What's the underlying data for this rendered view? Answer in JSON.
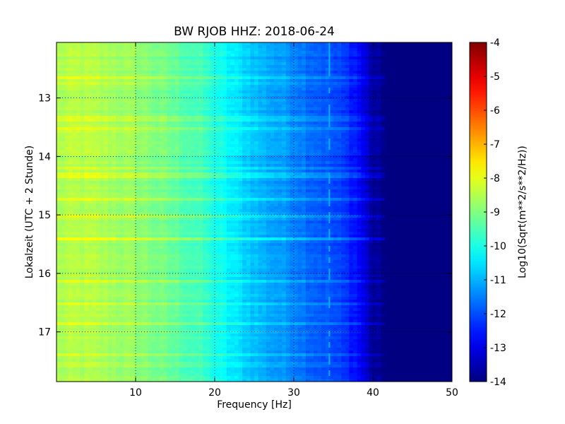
{
  "chart_data": {
    "type": "heatmap",
    "title": "BW RJOB HHZ: 2018-06-24",
    "xlabel": "Frequency [Hz]",
    "ylabel": "Lokalzeit (UTC + 2 Stunde)",
    "colorbar_label": "Log10(Sqrt(m**2/s**2/Hz))",
    "xlim": [
      0,
      50
    ],
    "ylim": [
      12.05,
      17.85
    ],
    "y_inverted": true,
    "x_ticks": [
      "10",
      "20",
      "30",
      "40",
      "50"
    ],
    "y_ticks": [
      "13",
      "14",
      "15",
      "16",
      "17"
    ],
    "colorbar_range": [
      -14,
      -4
    ],
    "colorbar_ticks": [
      "-4",
      "-5",
      "-6",
      "-7",
      "-8",
      "-9",
      "-10",
      "-11",
      "-12",
      "-13",
      "-14"
    ],
    "colormap": "jet",
    "grid": "dotted",
    "spectral_profile": {
      "frequency_hz": [
        0,
        2,
        4,
        6,
        8,
        10,
        12,
        14,
        16,
        18,
        20,
        22,
        24,
        26,
        28,
        30,
        32,
        34,
        36,
        38,
        40,
        42,
        44,
        46,
        48,
        50
      ],
      "log10_amplitude": [
        -8.6,
        -8.5,
        -8.5,
        -8.6,
        -8.7,
        -8.8,
        -9.0,
        -9.2,
        -9.4,
        -9.6,
        -10.0,
        -10.4,
        -10.7,
        -11.0,
        -11.2,
        -11.4,
        -11.7,
        -11.9,
        -12.2,
        -12.6,
        -13.7,
        -14.0,
        -14.0,
        -14.0,
        -14.0,
        -14.0
      ]
    },
    "features": {
      "spur_frequency_hz": 34.5,
      "spur_level": -11.0,
      "broadband_event_hours": [
        14.33,
        15.4
      ]
    }
  }
}
